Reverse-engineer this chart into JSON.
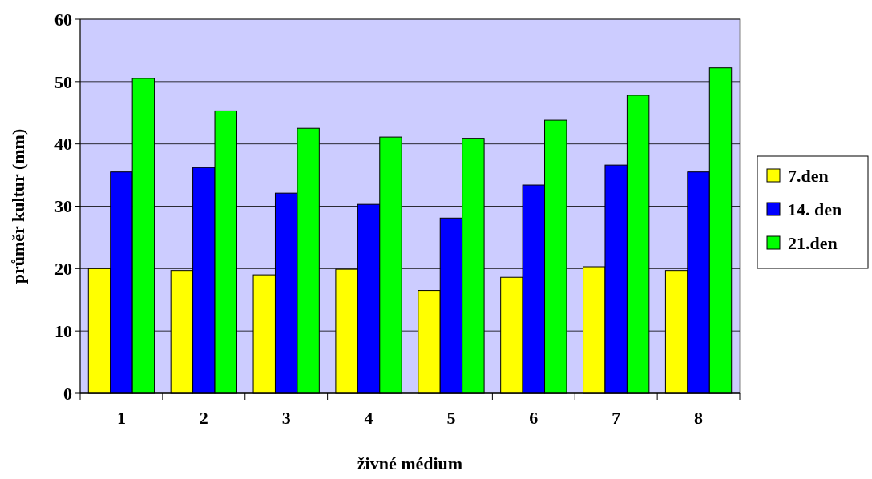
{
  "chart_data": {
    "type": "bar",
    "xlabel": "živné médium",
    "ylabel": "průměr kultur (mm)",
    "categories": [
      "1",
      "2",
      "3",
      "4",
      "5",
      "6",
      "7",
      "8"
    ],
    "series": [
      {
        "name": "7.den",
        "color": "#ffff00",
        "values": [
          20.0,
          19.7,
          19.0,
          19.9,
          16.5,
          18.6,
          20.3,
          19.7
        ]
      },
      {
        "name": "14. den",
        "color": "#0000ff",
        "values": [
          35.5,
          36.2,
          32.1,
          30.3,
          28.1,
          33.4,
          36.6,
          35.5
        ]
      },
      {
        "name": "21.den",
        "color": "#00ff00",
        "values": [
          50.5,
          45.3,
          42.5,
          41.1,
          40.9,
          43.8,
          47.8,
          52.2
        ]
      }
    ],
    "ylim": [
      0,
      60
    ],
    "yticks": [
      0,
      10,
      20,
      30,
      40,
      50,
      60
    ],
    "grid": "y",
    "legend": "right"
  }
}
